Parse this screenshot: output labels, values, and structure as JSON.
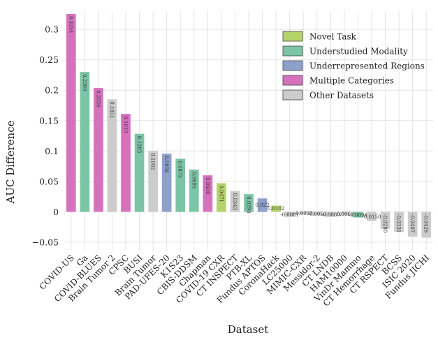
{
  "chart_data": {
    "type": "bar",
    "title": "",
    "xlabel": "Dataset",
    "ylabel": "AUC Difference",
    "ylim": [
      -0.065,
      0.33
    ],
    "yticks": [
      -0.05,
      0,
      0.05,
      0.1,
      0.15,
      0.2,
      0.25,
      0.3
    ],
    "ytick_labels": [
      "−0.05",
      "0",
      "0.05",
      "0.1",
      "0.15",
      "0.2",
      "0.25",
      "0.3"
    ],
    "grid": true,
    "legend_position": "top-right",
    "legend": [
      {
        "label": "Novel Task",
        "color": "#b5d36b"
      },
      {
        "label": "Understudied Modality",
        "color": "#7cc4a6"
      },
      {
        "label": "Underrepresented Regions",
        "color": "#8ea0cc"
      },
      {
        "label": "Multiple Categories",
        "color": "#d671bd"
      },
      {
        "label": "Other Datasets",
        "color": "#cccccc"
      }
    ],
    "categories": [
      "COVID-US",
      "Ga",
      "COVID-BLUES",
      "Brain Tumor 2",
      "CPSC",
      "BUSI",
      "Brain Tumor",
      "PAD-UFES-20",
      "K1S23",
      "CBIS-DDSM",
      "Chapman",
      "COVID-19 CXR",
      "CT INSPECT",
      "PTB-XL",
      "Fundus APTOS",
      "CoronaHack",
      "LC25000",
      "MIMIC-CXR",
      "Messidor-2",
      "CT LNDB",
      "HAM10000",
      "VinDr Mammo",
      "CT Hemorrhage",
      "CT RSPECT",
      "BCSS",
      "ISIC 2020",
      "Fundus JICHI"
    ],
    "values": [
      0.3254,
      0.23,
      0.2036,
      0.1851,
      0.161,
      0.1283,
      0.1002,
      0.0956,
      0.0873,
      0.0695,
      0.06,
      0.0471,
      0.0343,
      0.029,
      0.022,
      0.0102,
      -0.0081,
      -0.0039,
      -0.0056,
      -0.008,
      -0.006,
      -0.0094,
      -0.015,
      -0.028,
      -0.0331,
      -0.0407,
      -0.0426
    ],
    "value_labels": [
      "0.3254",
      "0.2300",
      "0.2036",
      "0.1851",
      "0.1610",
      "0.1283",
      "0.1002",
      "0.0956",
      "0.0873",
      "0.0695",
      "0.0600",
      "0.0471",
      "0.0343",
      "0.0290",
      "0.022",
      "0.0102",
      "-0.0081",
      "-0.0039",
      "-0.0056",
      "-0.0080",
      "-0.0060",
      "-0.0094",
      "-0.0150",
      "-0.0280",
      "-0.0331",
      "-0.0407",
      "-0.0426"
    ],
    "groups": [
      "Multiple Categories",
      "Understudied Modality",
      "Multiple Categories",
      "Other Datasets",
      "Multiple Categories",
      "Understudied Modality",
      "Other Datasets",
      "Underrepresented Regions",
      "Understudied Modality",
      "Understudied Modality",
      "Multiple Categories",
      "Novel Task",
      "Other Datasets",
      "Understudied Modality",
      "Underrepresented Regions",
      "Novel Task",
      "Other Datasets",
      "Other Datasets",
      "Other Datasets",
      "Other Datasets",
      "Other Datasets",
      "Understudied Modality",
      "Other Datasets",
      "Other Datasets",
      "Other Datasets",
      "Other Datasets",
      "Other Datasets"
    ]
  }
}
